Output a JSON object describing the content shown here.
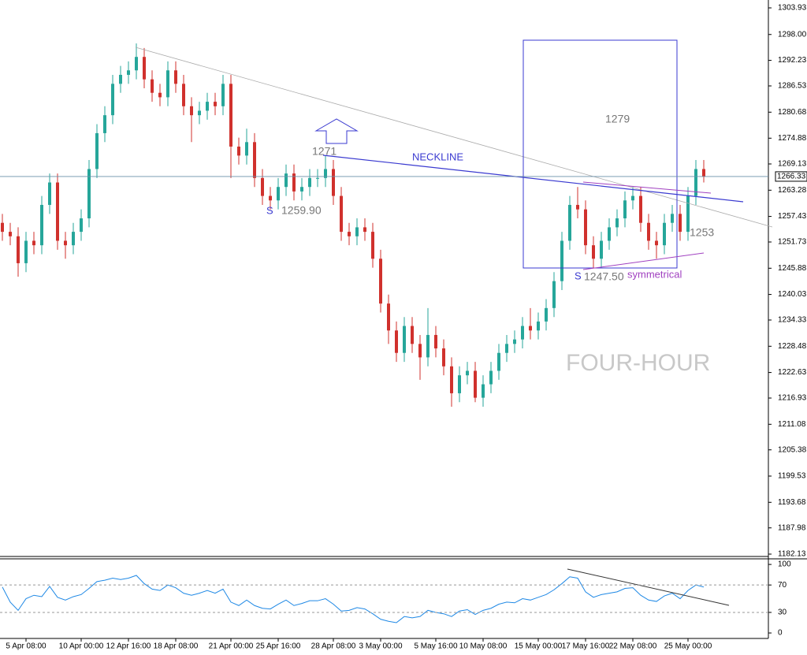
{
  "chart_data": [
    {
      "type": "candlestick",
      "categories": [
        null,
        null,
        null,
        "5 Apr 08:00",
        null,
        null,
        null,
        null,
        null,
        null,
        "10 Apr 00:00",
        null,
        null,
        null,
        null,
        null,
        "12 Apr 16:00",
        null,
        null,
        null,
        null,
        null,
        "18 Apr 08:00",
        null,
        null,
        null,
        null,
        null,
        null,
        "21 Apr 00:00",
        null,
        null,
        null,
        null,
        null,
        "25 Apr 16:00",
        null,
        null,
        null,
        null,
        null,
        null,
        "28 Apr 08:00",
        null,
        null,
        null,
        null,
        null,
        "3 May 00:00",
        null,
        null,
        null,
        null,
        null,
        null,
        "5 May 16:00",
        null,
        null,
        null,
        null,
        null,
        "10 May 08:00",
        null,
        null,
        null,
        null,
        null,
        null,
        "15 May 00:00",
        null,
        null,
        null,
        null,
        null,
        "17 May 16:00",
        null,
        null,
        null,
        null,
        null,
        "22 May 08:00",
        null,
        null,
        null,
        null,
        null,
        null,
        "25 May 00:00",
        null,
        null
      ],
      "open": [
        1256,
        1254,
        1253,
        1247,
        1252,
        1251,
        1260,
        1265,
        1252,
        1251,
        1254,
        1257,
        1268,
        1276,
        1280,
        1287,
        1289,
        1290,
        1293,
        1288,
        1285,
        1284,
        1290,
        1287,
        1282,
        1280,
        1281,
        1283,
        1282,
        1287,
        1273,
        1271,
        1274,
        1266,
        1262,
        1261,
        1264,
        1267,
        1263,
        1264,
        1266,
        1266,
        1268,
        1262,
        1254,
        1253,
        1255,
        1254,
        1248,
        1238,
        1232,
        1227,
        1233,
        1229,
        1226,
        1231,
        1228,
        1224,
        1218,
        1222,
        1223,
        1217,
        1220,
        1223,
        1227,
        1229,
        1230,
        1233,
        1232,
        1234,
        1237,
        1243,
        1252,
        1260,
        1259,
        1251,
        1248,
        1252,
        1255,
        1257,
        1261,
        1262,
        1256,
        1252,
        1251,
        1256,
        1258,
        1254,
        1262,
        1268
      ],
      "high": [
        1258,
        1256,
        1255,
        1254,
        1254,
        1262,
        1267,
        1267,
        1254,
        1256,
        1259,
        1270,
        1278,
        1282,
        1289,
        1291,
        1292,
        1296,
        1295,
        1290,
        1287,
        1292,
        1292,
        1289,
        1284,
        1283,
        1285,
        1285,
        1289,
        1289,
        1275,
        1277,
        1276,
        1268,
        1264,
        1266,
        1269,
        1269,
        1266,
        1268,
        1268,
        1271,
        1270,
        1264,
        1256,
        1257,
        1257,
        1256,
        1250,
        1240,
        1234,
        1235,
        1235,
        1231,
        1237,
        1233,
        1230,
        1226,
        1224,
        1225,
        1225,
        1222,
        1225,
        1229,
        1231,
        1232,
        1235,
        1237,
        1236,
        1239,
        1245,
        1254,
        1262,
        1264,
        1261,
        1253,
        1254,
        1257,
        1259,
        1263,
        1264,
        1264,
        1258,
        1254,
        1258,
        1260,
        1260,
        1264,
        1270,
        1270
      ],
      "low": [
        1252,
        1251,
        1244,
        1245,
        1249,
        1249,
        1258,
        1250,
        1248,
        1249,
        1252,
        1255,
        1266,
        1274,
        1278,
        1285,
        1287,
        1288,
        1286,
        1283,
        1282,
        1282,
        1285,
        1280,
        1274,
        1278,
        1279,
        1280,
        1280,
        1266,
        1269,
        1269,
        1264,
        1260,
        1259,
        1259,
        1262,
        1261,
        1261,
        1262,
        1264,
        1264,
        1260,
        1252,
        1251,
        1251,
        1252,
        1246,
        1236,
        1229,
        1225,
        1225,
        1227,
        1221,
        1224,
        1226,
        1222,
        1215,
        1216,
        1220,
        1216,
        1215,
        1218,
        1221,
        1225,
        1227,
        1228,
        1230,
        1230,
        1232,
        1235,
        1241,
        1250,
        1257,
        1249,
        1246,
        1246,
        1250,
        1253,
        1255,
        1259,
        1254,
        1250,
        1248,
        1249,
        1254,
        1252,
        1252,
        1260,
        1265
      ],
      "close": [
        1254,
        1253,
        1247,
        1252,
        1251,
        1260,
        1265,
        1252,
        1251,
        1254,
        1257,
        1268,
        1276,
        1280,
        1287,
        1289,
        1290,
        1293,
        1288,
        1285,
        1284,
        1290,
        1287,
        1282,
        1280,
        1281,
        1283,
        1282,
        1287,
        1273,
        1271,
        1274,
        1266,
        1262,
        1261,
        1264,
        1267,
        1263,
        1264,
        1266,
        1266,
        1268,
        1262,
        1254,
        1253,
        1255,
        1254,
        1248,
        1238,
        1232,
        1227,
        1233,
        1229,
        1226,
        1231,
        1228,
        1224,
        1218,
        1222,
        1223,
        1217,
        1220,
        1223,
        1227,
        1229,
        1230,
        1233,
        1232,
        1234,
        1237,
        1243,
        1252,
        1260,
        1259,
        1251,
        1248,
        1252,
        1255,
        1257,
        1261,
        1262,
        1256,
        1252,
        1251,
        1256,
        1258,
        1254,
        1262,
        1268,
        1266.3
      ],
      "up_color": "#26a69a",
      "down_color": "#d0312d",
      "ylim": [
        1181.78,
        1305.69
      ],
      "yticks": [
        1303.93,
        {
          "value": 1298,
          "label": "1298.00"
        },
        1292.23,
        1286.53,
        1280.68,
        1274.88,
        1269.13,
        1263.28,
        1257.43,
        1251.73,
        1245.88,
        1240.03,
        1234.33,
        1228.48,
        1222.63,
        1216.93,
        1211.08,
        1205.38,
        1199.53,
        1193.68,
        1187.98,
        1182.13
      ],
      "last_price": 1266.33
    },
    {
      "type": "line",
      "values": [
        67,
        45,
        33,
        50,
        55,
        53,
        68,
        52,
        48,
        53,
        56,
        65,
        75,
        77,
        80,
        78,
        80,
        84,
        72,
        64,
        62,
        70,
        66,
        58,
        55,
        58,
        62,
        58,
        64,
        45,
        40,
        48,
        40,
        36,
        35,
        42,
        48,
        40,
        43,
        47,
        47,
        50,
        42,
        32,
        33,
        37,
        35,
        28,
        20,
        17,
        15,
        24,
        22,
        24,
        33,
        30,
        28,
        24,
        32,
        34,
        27,
        33,
        36,
        42,
        45,
        44,
        50,
        48,
        52,
        56,
        63,
        72,
        82,
        80,
        60,
        52,
        56,
        58,
        60,
        65,
        66,
        55,
        48,
        46,
        54,
        58,
        50,
        62,
        70,
        67
      ],
      "color": "#1e88e5",
      "ylim": [
        -8,
        107
      ],
      "yticks": [
        0,
        30,
        70,
        100
      ],
      "levels": [
        30,
        70
      ]
    }
  ],
  "annotations": [
    "1271",
    "NECKLINE",
    "S",
    "1259.90",
    "1279",
    "1253",
    "S",
    "1247.50",
    "symmetrical",
    "FOUR-HOUR"
  ]
}
